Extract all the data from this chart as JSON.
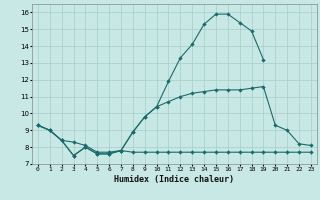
{
  "bg_color": "#c8e8e5",
  "grid_color": "#a8ccc9",
  "line_color": "#1a6b6b",
  "xlabel": "Humidex (Indice chaleur)",
  "xlim": [
    -0.5,
    23.5
  ],
  "ylim": [
    7.0,
    16.5
  ],
  "yticks": [
    7,
    8,
    9,
    10,
    11,
    12,
    13,
    14,
    15,
    16
  ],
  "xticks": [
    0,
    1,
    2,
    3,
    4,
    5,
    6,
    7,
    8,
    9,
    10,
    11,
    12,
    13,
    14,
    15,
    16,
    17,
    18,
    19,
    20,
    21,
    22,
    23
  ],
  "curve1_x": [
    0,
    1,
    2,
    3,
    4,
    5,
    6,
    7,
    8,
    9,
    10,
    11,
    12,
    13,
    14,
    15,
    16,
    17,
    18,
    19
  ],
  "curve1_y": [
    9.3,
    9.0,
    8.4,
    7.5,
    8.0,
    7.6,
    7.6,
    7.8,
    8.9,
    9.8,
    10.4,
    11.9,
    13.3,
    14.1,
    15.3,
    15.9,
    15.9,
    15.4,
    14.9,
    13.2
  ],
  "curve2_x": [
    0,
    1,
    2,
    3,
    4,
    5,
    6,
    7,
    8,
    9,
    10,
    11,
    12,
    13,
    14,
    15,
    16,
    17,
    18,
    19,
    20,
    21,
    22,
    23
  ],
  "curve2_y": [
    9.3,
    9.0,
    8.4,
    8.3,
    8.1,
    7.7,
    7.7,
    7.8,
    8.9,
    9.8,
    10.4,
    10.7,
    11.0,
    11.2,
    11.3,
    11.4,
    11.4,
    11.4,
    11.5,
    11.6,
    9.3,
    9.0,
    8.2,
    8.1
  ],
  "curve3_x": [
    0,
    1,
    2,
    3,
    4,
    5,
    6,
    7,
    8,
    9,
    10,
    11,
    12,
    13,
    14,
    15,
    16,
    17,
    18,
    19,
    20,
    21,
    22,
    23
  ],
  "curve3_y": [
    9.3,
    9.0,
    8.4,
    7.5,
    8.0,
    7.6,
    7.6,
    7.8,
    7.7,
    7.7,
    7.7,
    7.7,
    7.7,
    7.7,
    7.7,
    7.7,
    7.7,
    7.7,
    7.7,
    7.7,
    7.7,
    7.7,
    7.7,
    7.7
  ]
}
